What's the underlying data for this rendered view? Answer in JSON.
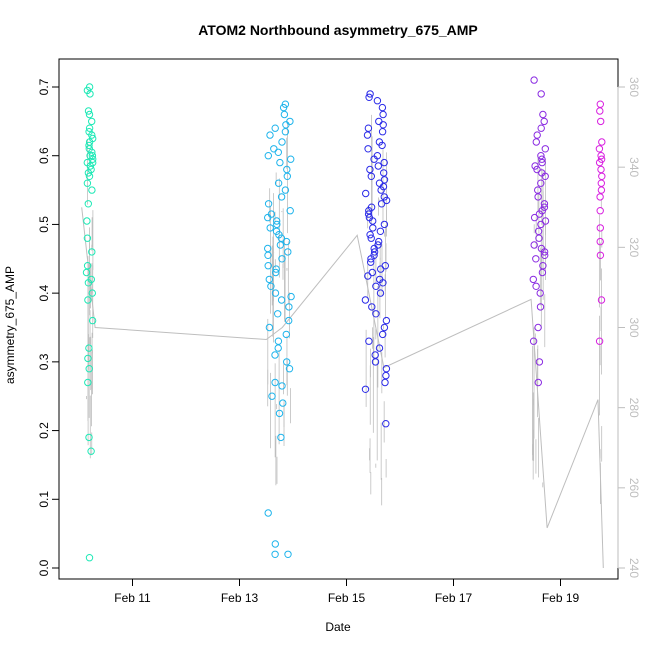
{
  "chart_data": {
    "type": "scatter",
    "title": "ATOM2 Northbound asymmetry_675_AMP",
    "xlabel": "Date",
    "ylabel": "asymmetry_675_AMP",
    "x_unit": "days",
    "x_ticks": [
      {
        "value": 11,
        "label": "Feb 11"
      },
      {
        "value": 13,
        "label": "Feb 13"
      },
      {
        "value": 15,
        "label": "Feb 15"
      },
      {
        "value": 17,
        "label": "Feb 17"
      },
      {
        "value": 19,
        "label": "Feb 19"
      }
    ],
    "xlim": [
      10.0,
      20.0
    ],
    "ylim": [
      0.0,
      0.7
    ],
    "y_ticks": [
      "0.0",
      "0.1",
      "0.2",
      "0.3",
      "0.4",
      "0.5",
      "0.6",
      "0.7"
    ],
    "y2lim": [
      240,
      360
    ],
    "y2_ticks": [
      "240",
      "260",
      "280",
      "300",
      "320",
      "340",
      "360"
    ],
    "y2_color": "#bebebe",
    "grid": false,
    "legend": "none",
    "series_colors": {
      "cluster_1": "#1de9b6",
      "cluster_2": "#1eb4ec",
      "cluster_3": "#2a2ae8",
      "cluster_4": "#8a2be2",
      "cluster_5": "#d81fe0",
      "secondary_line": "#bebebe"
    },
    "clusters": [
      {
        "center": 10.2,
        "width": 0.12,
        "color": "#1de9b6",
        "values": [
          0.7,
          0.695,
          0.69,
          0.665,
          0.66,
          0.65,
          0.64,
          0.635,
          0.63,
          0.625,
          0.62,
          0.615,
          0.61,
          0.605,
          0.6,
          0.6,
          0.595,
          0.59,
          0.59,
          0.585,
          0.58,
          0.575,
          0.57,
          0.56,
          0.55,
          0.53,
          0.505,
          0.48,
          0.46,
          0.44,
          0.43,
          0.42,
          0.415,
          0.4,
          0.39,
          0.36,
          0.32,
          0.305,
          0.29,
          0.27,
          0.19,
          0.17,
          0.015
        ]
      },
      {
        "center": 13.75,
        "width": 0.45,
        "color": "#1eb4ec",
        "values": [
          0.675,
          0.67,
          0.66,
          0.65,
          0.645,
          0.64,
          0.635,
          0.63,
          0.62,
          0.61,
          0.605,
          0.6,
          0.595,
          0.59,
          0.58,
          0.57,
          0.56,
          0.55,
          0.54,
          0.53,
          0.52,
          0.515,
          0.51,
          0.505,
          0.5,
          0.495,
          0.49,
          0.485,
          0.48,
          0.475,
          0.47,
          0.465,
          0.46,
          0.455,
          0.45,
          0.44,
          0.435,
          0.43,
          0.42,
          0.41,
          0.4,
          0.395,
          0.39,
          0.38,
          0.37,
          0.36,
          0.35,
          0.34,
          0.33,
          0.32,
          0.31,
          0.3,
          0.29,
          0.27,
          0.265,
          0.25,
          0.24,
          0.225,
          0.19,
          0.08,
          0.035,
          0.02,
          0.02
        ]
      },
      {
        "center": 15.55,
        "width": 0.4,
        "color": "#2a2ae8",
        "values": [
          0.69,
          0.685,
          0.68,
          0.67,
          0.66,
          0.65,
          0.645,
          0.64,
          0.635,
          0.63,
          0.62,
          0.615,
          0.61,
          0.6,
          0.595,
          0.59,
          0.585,
          0.58,
          0.575,
          0.57,
          0.565,
          0.56,
          0.555,
          0.55,
          0.545,
          0.54,
          0.535,
          0.53,
          0.525,
          0.52,
          0.515,
          0.51,
          0.505,
          0.5,
          0.495,
          0.49,
          0.485,
          0.48,
          0.475,
          0.47,
          0.465,
          0.46,
          0.455,
          0.45,
          0.445,
          0.44,
          0.435,
          0.43,
          0.425,
          0.42,
          0.415,
          0.41,
          0.4,
          0.39,
          0.38,
          0.37,
          0.36,
          0.35,
          0.34,
          0.33,
          0.32,
          0.31,
          0.3,
          0.29,
          0.28,
          0.27,
          0.26,
          0.21
        ]
      },
      {
        "center": 18.6,
        "width": 0.25,
        "color": "#8a2be2",
        "values": [
          0.71,
          0.69,
          0.66,
          0.65,
          0.64,
          0.63,
          0.62,
          0.61,
          0.6,
          0.595,
          0.59,
          0.585,
          0.58,
          0.575,
          0.57,
          0.56,
          0.55,
          0.54,
          0.53,
          0.525,
          0.52,
          0.515,
          0.51,
          0.505,
          0.5,
          0.49,
          0.48,
          0.47,
          0.465,
          0.46,
          0.455,
          0.45,
          0.44,
          0.43,
          0.42,
          0.41,
          0.4,
          0.38,
          0.35,
          0.33,
          0.3,
          0.27
        ]
      },
      {
        "center": 19.75,
        "width": 0.05,
        "color": "#d81fe0",
        "values": [
          0.675,
          0.665,
          0.65,
          0.62,
          0.61,
          0.6,
          0.595,
          0.59,
          0.58,
          0.57,
          0.56,
          0.55,
          0.54,
          0.52,
          0.495,
          0.475,
          0.455,
          0.39,
          0.33
        ]
      }
    ],
    "secondary_series": {
      "name": "",
      "axis": "right",
      "x": [
        10.05,
        10.3,
        13.5,
        13.8,
        15.2,
        15.7,
        18.45,
        18.75,
        19.7,
        19.8
      ],
      "y": [
        330,
        300,
        297,
        300,
        323,
        290,
        307,
        250,
        282,
        240
      ]
    }
  }
}
